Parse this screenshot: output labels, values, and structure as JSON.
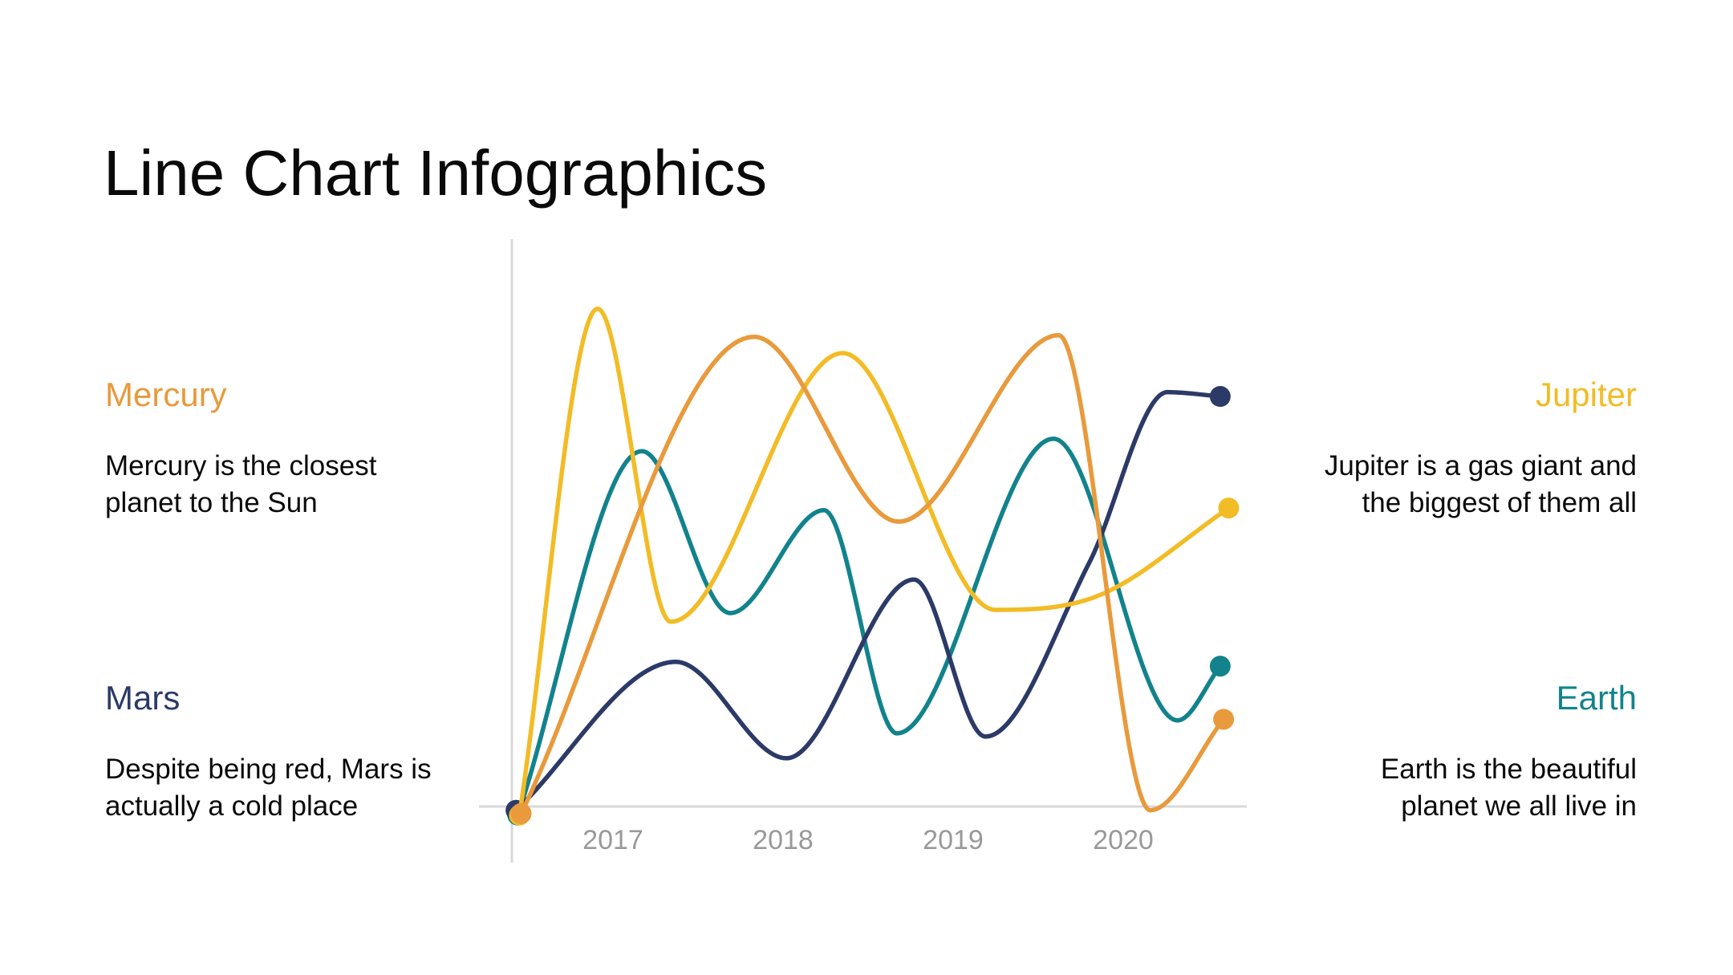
{
  "slide": {
    "title": "Line Chart Infographics"
  },
  "panels": {
    "mercury": {
      "heading": "Mercury",
      "body": "Mercury is the closest\nplanet to the Sun",
      "color": "#E89A3C"
    },
    "jupiter": {
      "heading": "Jupiter",
      "body": "Jupiter is a gas giant and\nthe biggest of them all",
      "color": "#F2BC26"
    },
    "mars": {
      "heading": "Mars",
      "body": "Despite being red, Mars is\nactually a cold place",
      "color": "#2B3A67"
    },
    "earth": {
      "heading": "Earth",
      "body": "Earth is the beautiful\nplanet we all live in",
      "color": "#12838C"
    }
  },
  "chart_data": {
    "type": "line",
    "title": "",
    "x_axis": {
      "tick_labels": [
        "2017",
        "2018",
        "2019",
        "2020"
      ],
      "tick_positions": [
        2017,
        2018,
        2019,
        2020
      ],
      "color": "#999999"
    },
    "xlim": [
      2016.43,
      2020.62
    ],
    "ylim": [
      0,
      100
    ],
    "grid": false,
    "legend_position": "none",
    "axis_color": "#D9D9D9",
    "series": [
      {
        "name": "Earth",
        "color": "#12838C",
        "points": [
          [
            2016.44,
            -1.6
          ],
          [
            2017.17,
            65.6
          ],
          [
            2017.69,
            35.7
          ],
          [
            2018.24,
            54.7
          ],
          [
            2018.67,
            13.5
          ],
          [
            2019.59,
            67.9
          ],
          [
            2020.32,
            15.9
          ],
          [
            2020.57,
            25.9
          ]
        ]
      },
      {
        "name": "Mars",
        "color": "#2B3A67",
        "points": [
          [
            2016.43,
            -0.7
          ],
          [
            2017.37,
            26.7
          ],
          [
            2018.02,
            8.9
          ],
          [
            2018.77,
            41.9
          ],
          [
            2019.19,
            12.9
          ],
          [
            2019.8,
            45.0
          ],
          [
            2020.26,
            76.5
          ],
          [
            2020.57,
            75.7
          ]
        ]
      },
      {
        "name": "Jupiter",
        "color": "#F2BC26",
        "points": [
          [
            2016.45,
            -1.6
          ],
          [
            2016.91,
            91.9
          ],
          [
            2017.34,
            34.1
          ],
          [
            2018.35,
            83.7
          ],
          [
            2019.25,
            36.3
          ],
          [
            2019.86,
            39.0
          ],
          [
            2020.62,
            55.1
          ]
        ]
      },
      {
        "name": "Mercury",
        "color": "#E89A3C",
        "points": [
          [
            2016.46,
            -1.3
          ],
          [
            2017.83,
            86.7
          ],
          [
            2018.68,
            52.6
          ],
          [
            2019.62,
            87.0
          ],
          [
            2020.16,
            -0.7
          ],
          [
            2020.59,
            16.1
          ]
        ]
      }
    ]
  }
}
